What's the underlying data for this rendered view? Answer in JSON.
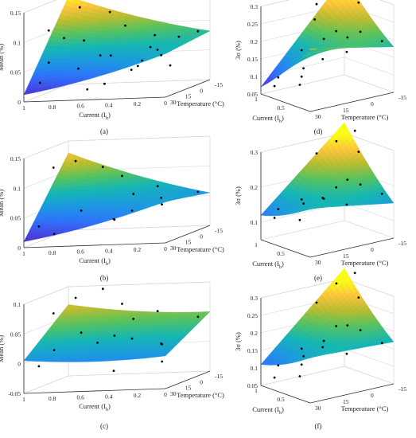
{
  "colors": {
    "colormap": [
      "#3e26a8",
      "#4743e0",
      "#2c72fb",
      "#1b98e0",
      "#13b6b3",
      "#54c25f",
      "#b8bc2f",
      "#fcc43b",
      "#f9fb15"
    ],
    "marker": "#000000",
    "frame": "#2a2a2a",
    "grid": "#d0d0d0"
  },
  "chart_data": [
    {
      "type": "surface",
      "panel_label": "(a)",
      "title": "",
      "xlabel": "Current (I",
      "xlabel_sub": "b",
      "xlabel_end": ")",
      "ylabel": "Temperature (°C)",
      "zlabel": "Mean (%)",
      "xlim": [
        0,
        1
      ],
      "ylim": [
        -15,
        30
      ],
      "zlim": [
        0,
        0.15
      ],
      "xticks": [
        "1",
        "0.8",
        "0.6",
        "0.4",
        "0.2",
        "0"
      ],
      "yticks": [
        "30",
        "15",
        "0",
        "-15"
      ],
      "zticks": [
        "0",
        "0.05",
        "0.1",
        "0.15"
      ],
      "surface_corners": {
        "I0_T30": 0.073,
        "I1_T30": 0.012,
        "I0_Tm15": 0.082,
        "I1_Tm15": 0.148
      },
      "points": [
        {
          "I": 0.05,
          "T": -10,
          "z": 0.085
        },
        {
          "I": 0.1,
          "T": 20,
          "z": 0.065
        },
        {
          "I": 0.15,
          "T": -5,
          "z": 0.08
        },
        {
          "I": 0.2,
          "T": 25,
          "z": 0.06
        },
        {
          "I": 0.25,
          "T": 5,
          "z": 0.09
        },
        {
          "I": 0.3,
          "T": 15,
          "z": 0.045
        },
        {
          "I": 0.35,
          "T": -12,
          "z": 0.055
        },
        {
          "I": 0.4,
          "T": 28,
          "z": 0.072
        },
        {
          "I": 0.45,
          "T": 0,
          "z": 0.03
        },
        {
          "I": 0.5,
          "T": 20,
          "z": 0.02
        },
        {
          "I": 0.55,
          "T": -8,
          "z": 0.1
        },
        {
          "I": 0.6,
          "T": 10,
          "z": 0.062
        },
        {
          "I": 0.65,
          "T": 25,
          "z": 0.05
        },
        {
          "I": 0.7,
          "T": -14,
          "z": 0.12
        },
        {
          "I": 0.75,
          "T": 5,
          "z": 0.085
        },
        {
          "I": 0.8,
          "T": 18,
          "z": 0.098
        },
        {
          "I": 0.85,
          "T": -5,
          "z": 0.135
        },
        {
          "I": 0.9,
          "T": 28,
          "z": 0.03
        },
        {
          "I": 0.95,
          "T": 12,
          "z": 0.108
        },
        {
          "I": 1.0,
          "T": -15,
          "z": 0.15
        },
        {
          "I": 0.12,
          "T": 8,
          "z": 0.04
        },
        {
          "I": 0.33,
          "T": -2,
          "z": 0.066
        },
        {
          "I": 0.58,
          "T": 26,
          "z": 0.015
        },
        {
          "I": 0.88,
          "T": 22,
          "z": 0.06
        }
      ]
    },
    {
      "type": "surface",
      "panel_label": "(b)",
      "title": "",
      "xlabel": "Current (I",
      "xlabel_sub": "b",
      "xlabel_end": ")",
      "ylabel": "Temperature (°C)",
      "zlabel": "Mean (%)",
      "xlim": [
        0,
        1
      ],
      "ylim": [
        -15,
        30
      ],
      "zlim": [
        0,
        0.15
      ],
      "xticks": [
        "1",
        "0.8",
        "0.6",
        "0.4",
        "0.2",
        "0"
      ],
      "yticks": [
        "30",
        "15",
        "0",
        "-15"
      ],
      "zticks": [
        "0",
        "0.05",
        "0.1",
        "0.15"
      ],
      "surface_corners": {
        "I0_T30": 0.07,
        "I1_T30": 0.01,
        "I0_Tm15": 0.055,
        "I1_Tm15": 0.13
      },
      "points": [
        {
          "I": 0.05,
          "T": -10,
          "z": 0.06
        },
        {
          "I": 0.1,
          "T": 20,
          "z": 0.07
        },
        {
          "I": 0.2,
          "T": 5,
          "z": 0.05
        },
        {
          "I": 0.3,
          "T": -5,
          "z": 0.075
        },
        {
          "I": 0.4,
          "T": 25,
          "z": 0.04
        },
        {
          "I": 0.5,
          "T": 10,
          "z": 0.03
        },
        {
          "I": 0.6,
          "T": -12,
          "z": 0.09
        },
        {
          "I": 0.7,
          "T": 15,
          "z": 0.05
        },
        {
          "I": 0.8,
          "T": 28,
          "z": 0.02
        },
        {
          "I": 0.9,
          "T": -8,
          "z": 0.12
        },
        {
          "I": 1.0,
          "T": 0,
          "z": 0.115
        },
        {
          "I": 0.95,
          "T": 22,
          "z": 0.03
        },
        {
          "I": 0.45,
          "T": -2,
          "z": 0.065
        },
        {
          "I": 0.25,
          "T": 28,
          "z": 0.055
        },
        {
          "I": 0.75,
          "T": -14,
          "z": 0.105
        }
      ]
    },
    {
      "type": "surface",
      "panel_label": "(c)",
      "title": "",
      "xlabel": "Current (I",
      "xlabel_sub": "b",
      "xlabel_end": ")",
      "ylabel": "Temperature (°C)",
      "zlabel": "Mean (%)",
      "xlim": [
        0,
        1
      ],
      "ylim": [
        -15,
        30
      ],
      "zlim": [
        -0.05,
        0.1
      ],
      "xticks": [
        "1",
        "0.8",
        "0.6",
        "0.4",
        "0.2",
        "0"
      ],
      "yticks": [
        "30",
        "15",
        "0",
        "-15"
      ],
      "zticks": [
        "-0.05",
        "0",
        "0.05",
        "0.1"
      ],
      "surface_corners": {
        "I0_T30": 0.005,
        "I1_T30": 0.005,
        "I0_Tm15": 0.05,
        "I1_Tm15": 0.07
      },
      "points": [
        {
          "I": 0.05,
          "T": -10,
          "z": 0.045
        },
        {
          "I": 0.1,
          "T": 20,
          "z": 0.02
        },
        {
          "I": 0.2,
          "T": 5,
          "z": 0.01
        },
        {
          "I": 0.3,
          "T": -5,
          "z": 0.06
        },
        {
          "I": 0.4,
          "T": 25,
          "z": -0.02
        },
        {
          "I": 0.5,
          "T": 10,
          "z": 0.03
        },
        {
          "I": 0.6,
          "T": -12,
          "z": 0.07
        },
        {
          "I": 0.7,
          "T": 15,
          "z": 0.04
        },
        {
          "I": 0.8,
          "T": 28,
          "z": 0.02
        },
        {
          "I": 0.9,
          "T": -8,
          "z": 0.085
        },
        {
          "I": 1.0,
          "T": 0,
          "z": 0.065
        },
        {
          "I": 0.95,
          "T": 22,
          "z": -0.01
        },
        {
          "I": 0.45,
          "T": -2,
          "z": 0.05
        },
        {
          "I": 0.25,
          "T": 28,
          "z": 0.035
        },
        {
          "I": 0.75,
          "T": -14,
          "z": 0.095
        },
        {
          "I": 0.15,
          "T": 12,
          "z": -0.015
        },
        {
          "I": 0.55,
          "T": 20,
          "z": 0.025
        }
      ]
    },
    {
      "type": "surface",
      "panel_label": "(d)",
      "title": "",
      "xlabel": "Current (I",
      "xlabel_sub": "b",
      "xlabel_end": ")",
      "ylabel": "Temperature (°C)",
      "zlabel": "3σ (%)",
      "xlim": [
        0,
        1
      ],
      "ylim": [
        -15,
        30
      ],
      "zlim": [
        0.05,
        0.3
      ],
      "xticks": [
        "0.5",
        "1"
      ],
      "yticks": [
        "30",
        "15",
        "0",
        "-15"
      ],
      "zticks": [
        "0.05",
        "0.1",
        "0.15",
        "0.2",
        "0.25",
        "0.3"
      ],
      "surface_corners": {
        "I0_T30": 0.23,
        "I1_T30": 0.07,
        "I0_Tm15": 0.18,
        "I1_Tm15": 0.33
      },
      "points": [
        {
          "I": 0.05,
          "T": -10,
          "z": 0.2
        },
        {
          "I": 0.1,
          "T": 20,
          "z": 0.24
        },
        {
          "I": 0.2,
          "T": 5,
          "z": 0.18
        },
        {
          "I": 0.3,
          "T": -5,
          "z": 0.22
        },
        {
          "I": 0.4,
          "T": 25,
          "z": 0.1
        },
        {
          "I": 0.5,
          "T": 10,
          "z": 0.15
        },
        {
          "I": 0.6,
          "T": -12,
          "z": 0.28
        },
        {
          "I": 0.7,
          "T": 15,
          "z": 0.12
        },
        {
          "I": 0.8,
          "T": 28,
          "z": 0.08
        },
        {
          "I": 0.9,
          "T": -8,
          "z": 0.3
        },
        {
          "I": 1.0,
          "T": 0,
          "z": 0.27
        },
        {
          "I": 0.95,
          "T": 22,
          "z": 0.09
        },
        {
          "I": 0.45,
          "T": -2,
          "z": 0.2
        },
        {
          "I": 0.25,
          "T": 28,
          "z": 0.21
        },
        {
          "I": 0.75,
          "T": -14,
          "z": 0.33
        },
        {
          "I": 0.15,
          "T": 12,
          "z": 0.25
        },
        {
          "I": 0.55,
          "T": 20,
          "z": 0.11
        },
        {
          "I": 0.85,
          "T": 5,
          "z": 0.24
        }
      ]
    },
    {
      "type": "surface",
      "panel_label": "(e)",
      "title": "",
      "xlabel": "Current (I",
      "xlabel_sub": "b",
      "xlabel_end": ")",
      "ylabel": "Temperature (°C)",
      "zlabel": "3σ (%)",
      "xlim": [
        0,
        1
      ],
      "ylim": [
        -15,
        30
      ],
      "zlim": [
        0.05,
        0.3
      ],
      "xticks": [
        "0.5",
        "1"
      ],
      "yticks": [
        "30",
        "15",
        "0",
        "-15"
      ],
      "zticks": [
        "0.1",
        "0.2",
        "0.3"
      ],
      "surface_corners": {
        "I0_T30": 0.19,
        "I1_T30": 0.12,
        "I0_Tm15": 0.15,
        "I1_Tm15": 0.33
      },
      "points": [
        {
          "I": 0.05,
          "T": -10,
          "z": 0.18
        },
        {
          "I": 0.1,
          "T": 20,
          "z": 0.2
        },
        {
          "I": 0.2,
          "T": 5,
          "z": 0.16
        },
        {
          "I": 0.3,
          "T": -5,
          "z": 0.2
        },
        {
          "I": 0.4,
          "T": 25,
          "z": 0.13
        },
        {
          "I": 0.5,
          "T": 10,
          "z": 0.17
        },
        {
          "I": 0.6,
          "T": -12,
          "z": 0.27
        },
        {
          "I": 0.7,
          "T": 15,
          "z": 0.15
        },
        {
          "I": 0.8,
          "T": 28,
          "z": 0.12
        },
        {
          "I": 0.9,
          "T": -8,
          "z": 0.29
        },
        {
          "I": 1.0,
          "T": 0,
          "z": 0.26
        },
        {
          "I": 0.95,
          "T": 22,
          "z": 0.13
        },
        {
          "I": 0.45,
          "T": -2,
          "z": 0.21
        },
        {
          "I": 0.25,
          "T": 28,
          "z": 0.2
        },
        {
          "I": 0.75,
          "T": -14,
          "z": 0.32
        },
        {
          "I": 0.15,
          "T": 12,
          "z": 0.22
        }
      ]
    },
    {
      "type": "surface",
      "panel_label": "(f)",
      "title": "",
      "xlabel": "Current (I",
      "xlabel_sub": "b",
      "xlabel_end": ")",
      "ylabel": "Temperature (°C)",
      "zlabel": "3σ (%)",
      "xlim": [
        0,
        1
      ],
      "ylim": [
        -15,
        30
      ],
      "zlim": [
        0.05,
        0.3
      ],
      "xticks": [
        "0.5",
        "1"
      ],
      "yticks": [
        "30",
        "15",
        "0",
        "-15"
      ],
      "zticks": [
        "0.05",
        "0.1",
        "0.15",
        "0.2",
        "0.25",
        "0.3"
      ],
      "surface_corners": {
        "I0_T30": 0.18,
        "I1_T30": 0.11,
        "I0_Tm15": 0.17,
        "I1_Tm15": 0.33
      },
      "points": [
        {
          "I": 0.05,
          "T": -10,
          "z": 0.17
        },
        {
          "I": 0.1,
          "T": 20,
          "z": 0.21
        },
        {
          "I": 0.2,
          "T": 5,
          "z": 0.15
        },
        {
          "I": 0.3,
          "T": -5,
          "z": 0.2
        },
        {
          "I": 0.4,
          "T": 25,
          "z": 0.1
        },
        {
          "I": 0.5,
          "T": 10,
          "z": 0.16
        },
        {
          "I": 0.6,
          "T": -12,
          "z": 0.27
        },
        {
          "I": 0.7,
          "T": 15,
          "z": 0.13
        },
        {
          "I": 0.8,
          "T": 28,
          "z": 0.08
        },
        {
          "I": 0.9,
          "T": -8,
          "z": 0.3
        },
        {
          "I": 1.0,
          "T": 0,
          "z": 0.25
        },
        {
          "I": 0.95,
          "T": 22,
          "z": 0.1
        },
        {
          "I": 0.45,
          "T": -2,
          "z": 0.21
        },
        {
          "I": 0.25,
          "T": 28,
          "z": 0.19
        },
        {
          "I": 0.75,
          "T": -14,
          "z": 0.33
        },
        {
          "I": 0.15,
          "T": 12,
          "z": 0.24
        },
        {
          "I": 0.55,
          "T": 20,
          "z": 0.12
        }
      ]
    }
  ]
}
